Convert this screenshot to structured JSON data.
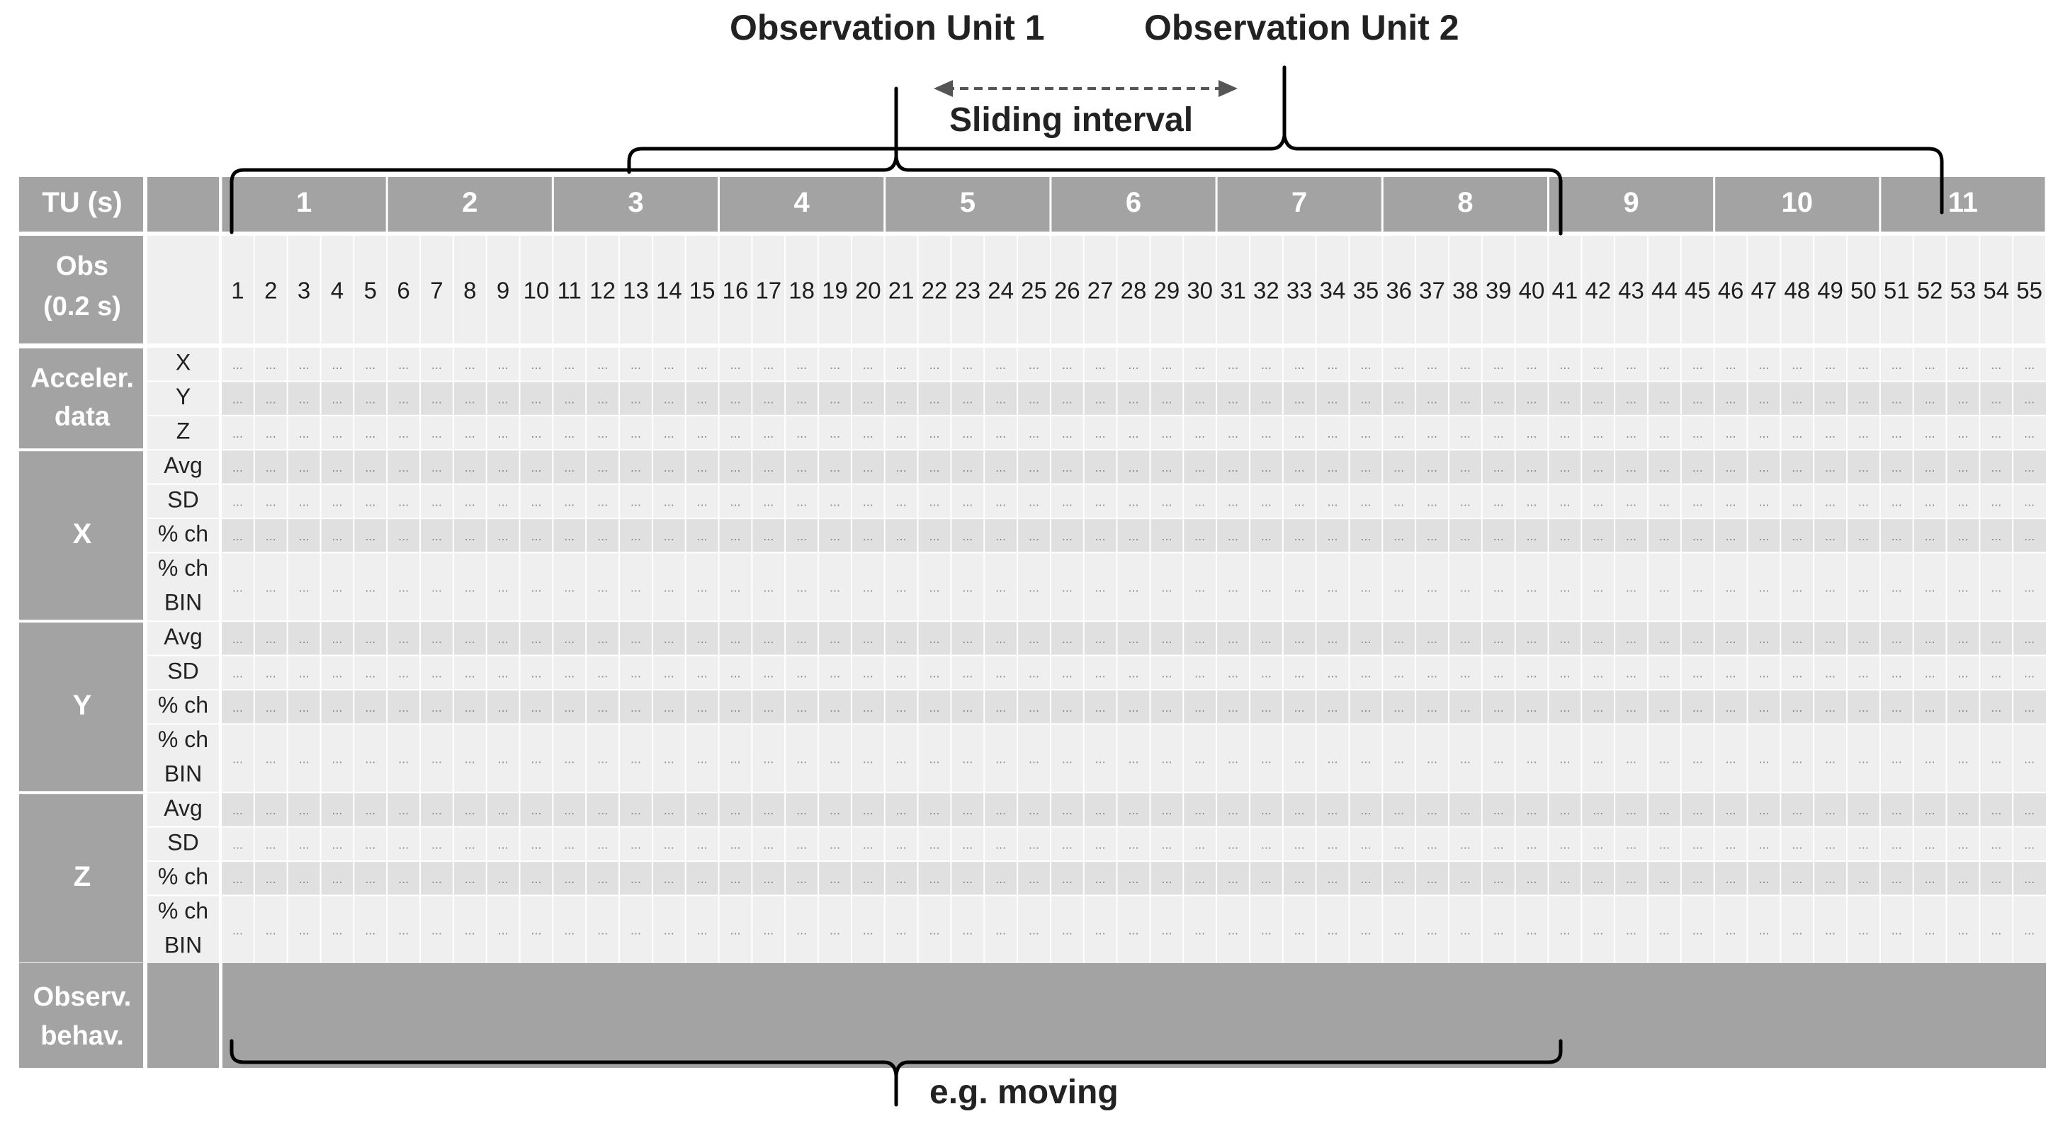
{
  "annotations": {
    "observation_unit_1": "Observation Unit 1",
    "observation_unit_2": "Observation Unit 2",
    "sliding_interval": "Sliding interval",
    "example_behavior": "e.g. moving"
  },
  "table": {
    "tu_header": "TU (s)",
    "tu_values": [
      "1",
      "2",
      "3",
      "4",
      "5",
      "6",
      "7",
      "8",
      "9",
      "10",
      "11"
    ],
    "obs_header_line1": "Obs",
    "obs_header_line2": "(0.2 s)",
    "obs_count": 55,
    "empty_cell": "...",
    "groups": [
      {
        "label": [
          "Acceler.",
          "data"
        ],
        "rows": [
          [
            "X"
          ],
          [
            "Y"
          ],
          [
            "Z"
          ]
        ]
      },
      {
        "label": [
          "X"
        ],
        "rows": [
          [
            "Avg"
          ],
          [
            "SD"
          ],
          [
            "% ch"
          ],
          [
            "% ch",
            "BIN"
          ]
        ]
      },
      {
        "label": [
          "Y"
        ],
        "rows": [
          [
            "Avg"
          ],
          [
            "SD"
          ],
          [
            "% ch"
          ],
          [
            "% ch",
            "BIN"
          ]
        ]
      },
      {
        "label": [
          "Z"
        ],
        "rows": [
          [
            "Avg"
          ],
          [
            "SD"
          ],
          [
            "% ch"
          ],
          [
            "% ch",
            "BIN"
          ]
        ]
      }
    ],
    "observed_behavior_label": [
      "Observ.",
      "behav."
    ]
  },
  "colors": {
    "header_fill": "#a3a3a3",
    "cell_light": "#efefef",
    "cell_dark": "#e0e0e0",
    "bracket": "#000000",
    "arrow": "#555555"
  }
}
